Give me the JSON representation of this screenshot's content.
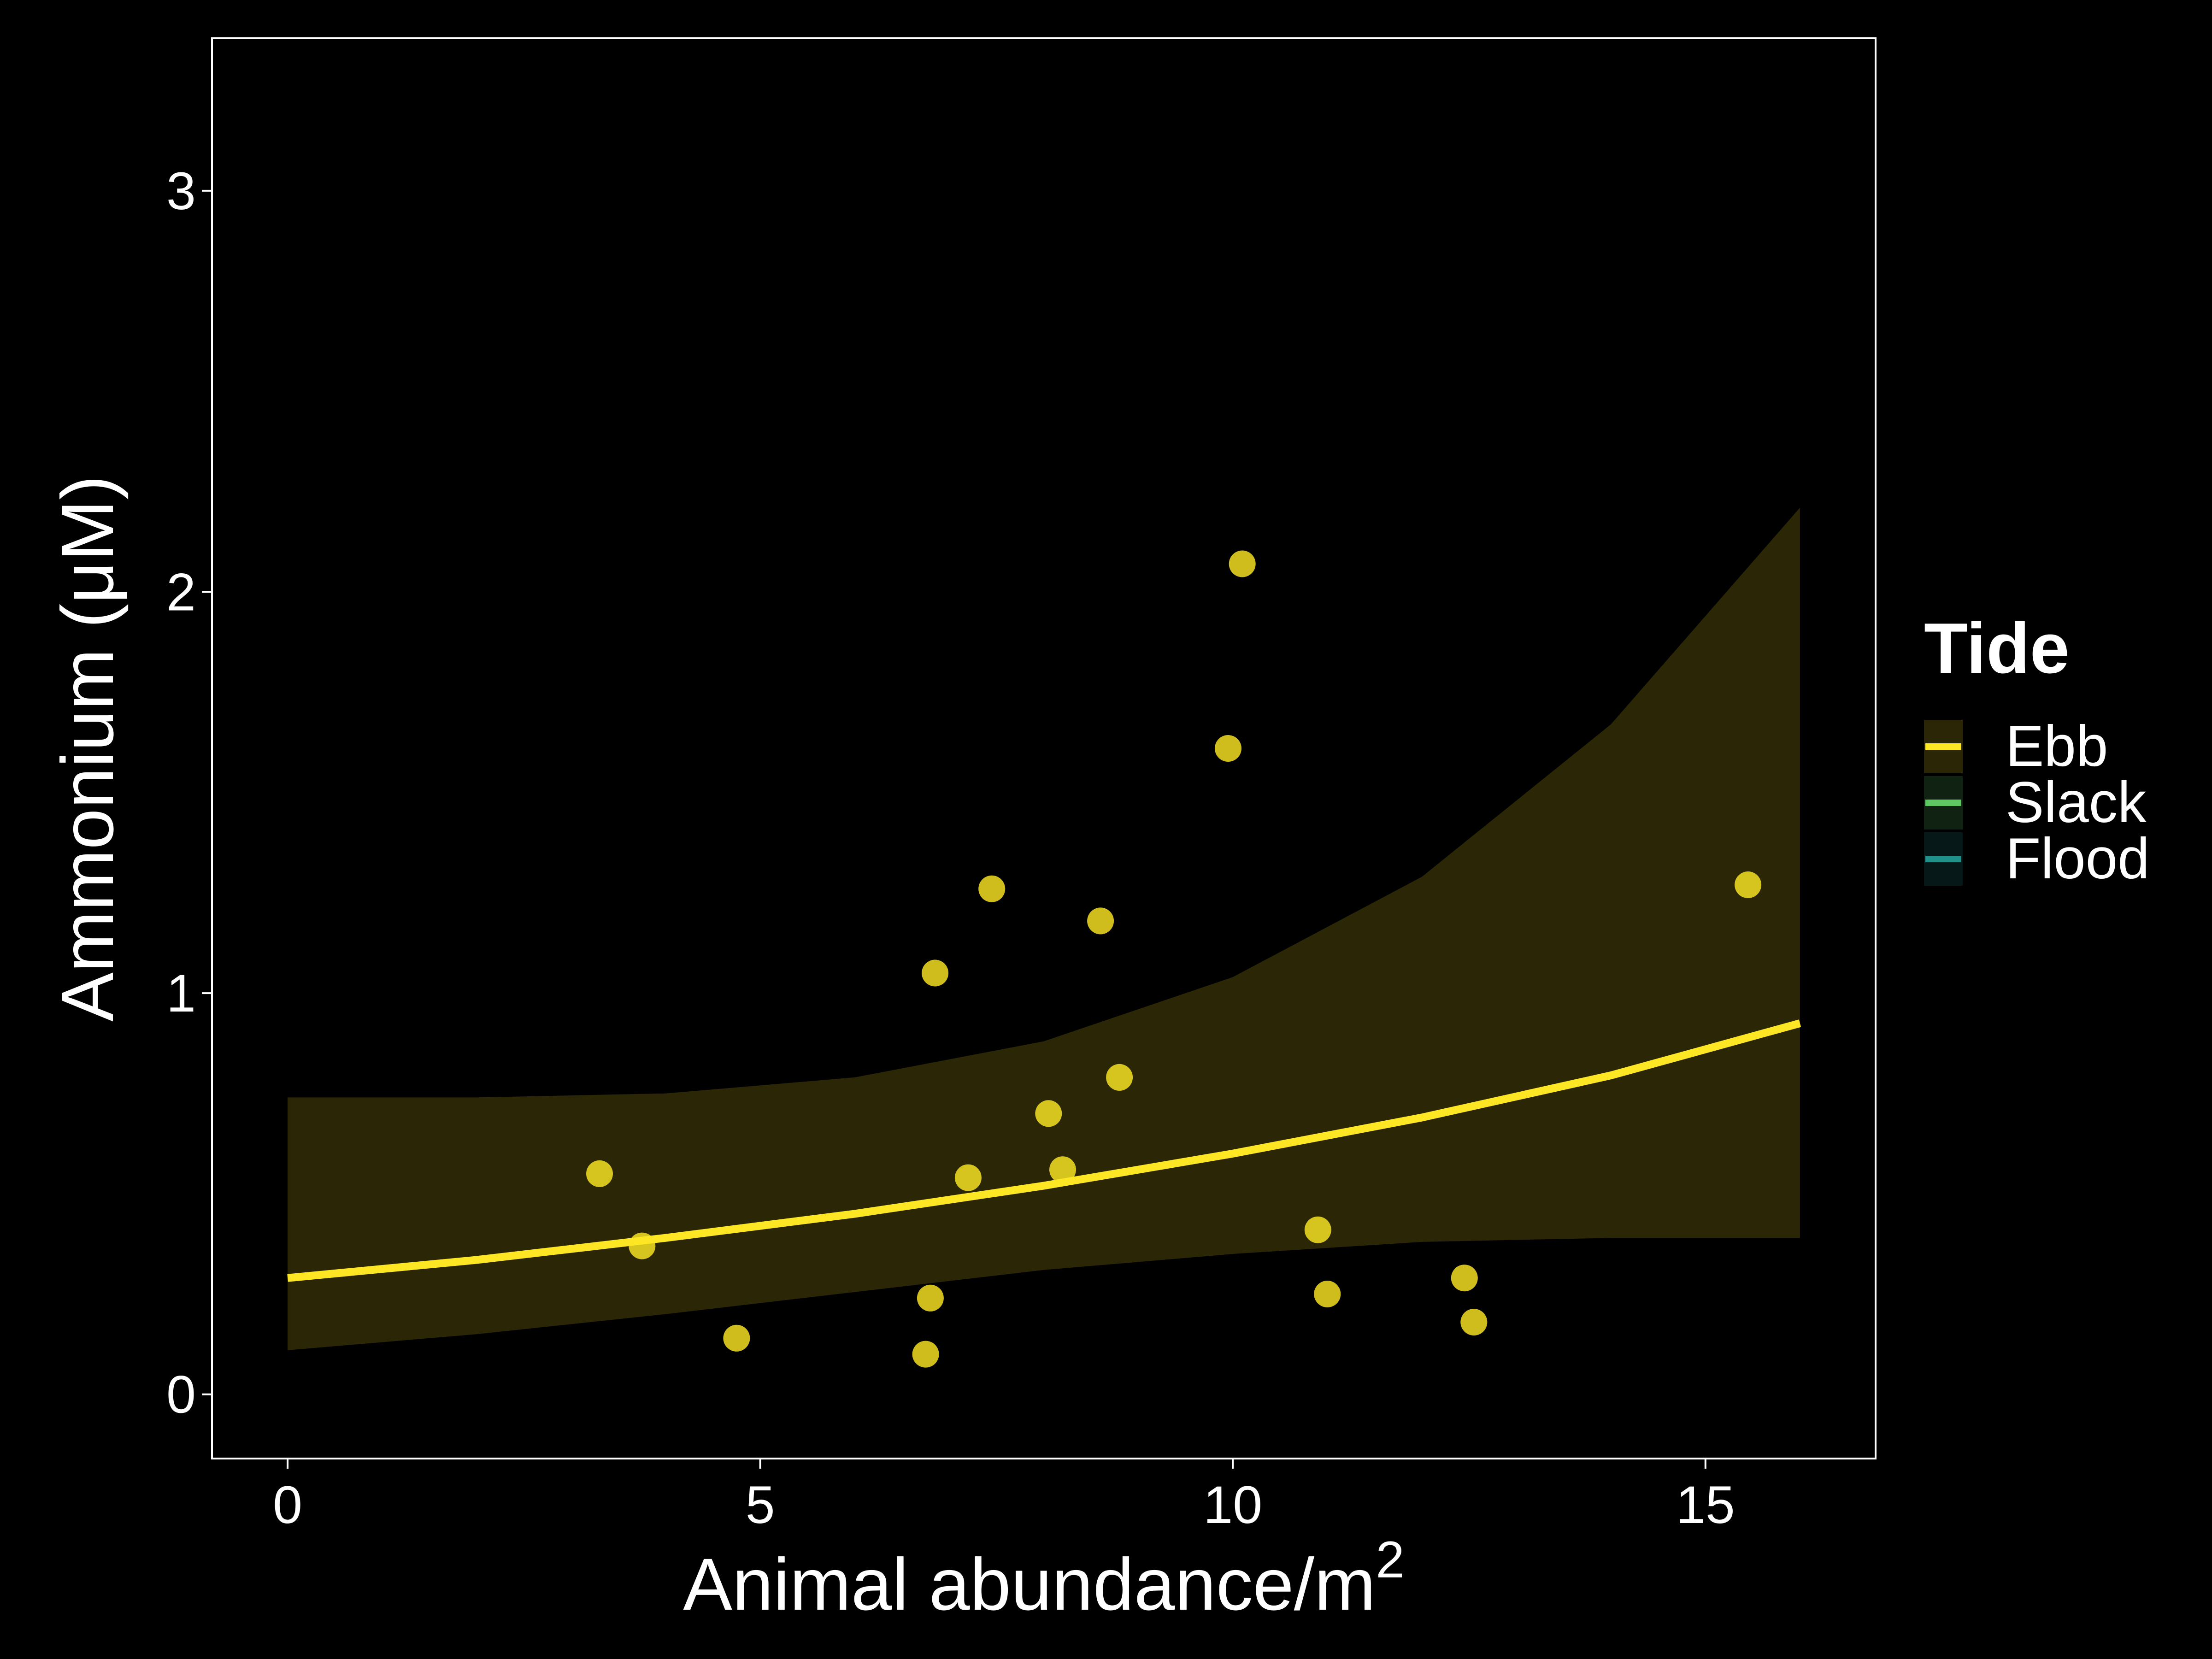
{
  "chart_data": {
    "type": "scatter",
    "xlabel_main": "Animal abundance/m",
    "xlabel_superscript": "2",
    "ylabel": "Ammonium (μM)",
    "xlim": [
      -0.8,
      16.8
    ],
    "ylim": [
      -0.16,
      3.38
    ],
    "x_ticks": [
      0,
      5,
      10,
      15
    ],
    "y_ticks": [
      0,
      1,
      2,
      3
    ],
    "x_tick_labels": [
      "0",
      "5",
      "10",
      "15"
    ],
    "y_tick_labels": [
      "0",
      "1",
      "2",
      "3"
    ],
    "grid": false,
    "legend": {
      "title": "Tide",
      "placement": "right",
      "entries": [
        {
          "label": "Ebb",
          "color": "#FDE725"
        },
        {
          "label": "Slack",
          "color": "#5EC962"
        },
        {
          "label": "Flood",
          "color": "#21918C"
        }
      ]
    },
    "series": [
      {
        "name": "Ebb",
        "color": "#FDE725",
        "points": [
          {
            "x": 3.3,
            "y": 0.55
          },
          {
            "x": 3.75,
            "y": 0.37
          },
          {
            "x": 4.75,
            "y": 0.14
          },
          {
            "x": 6.75,
            "y": 0.1
          },
          {
            "x": 6.8,
            "y": 0.24
          },
          {
            "x": 6.85,
            "y": 1.05
          },
          {
            "x": 7.2,
            "y": 0.54
          },
          {
            "x": 7.45,
            "y": 1.26
          },
          {
            "x": 8.05,
            "y": 0.7
          },
          {
            "x": 8.2,
            "y": 0.56
          },
          {
            "x": 8.6,
            "y": 1.18
          },
          {
            "x": 8.8,
            "y": 0.79
          },
          {
            "x": 9.95,
            "y": 1.61
          },
          {
            "x": 10.1,
            "y": 2.07
          },
          {
            "x": 10.9,
            "y": 0.41
          },
          {
            "x": 11.0,
            "y": 0.25
          },
          {
            "x": 12.45,
            "y": 0.29
          },
          {
            "x": 12.55,
            "y": 0.18
          },
          {
            "x": 15.45,
            "y": 1.27
          }
        ],
        "fit": {
          "x": [
            0,
            2,
            4,
            6,
            8,
            10,
            12,
            14,
            16
          ],
          "y": [
            0.29,
            0.335,
            0.39,
            0.45,
            0.52,
            0.6,
            0.69,
            0.795,
            0.925
          ],
          "lower": [
            0.11,
            0.15,
            0.2,
            0.255,
            0.31,
            0.35,
            0.38,
            0.39,
            0.39
          ],
          "upper": [
            0.74,
            0.74,
            0.75,
            0.79,
            0.88,
            1.04,
            1.29,
            1.67,
            2.21
          ]
        }
      }
    ]
  }
}
